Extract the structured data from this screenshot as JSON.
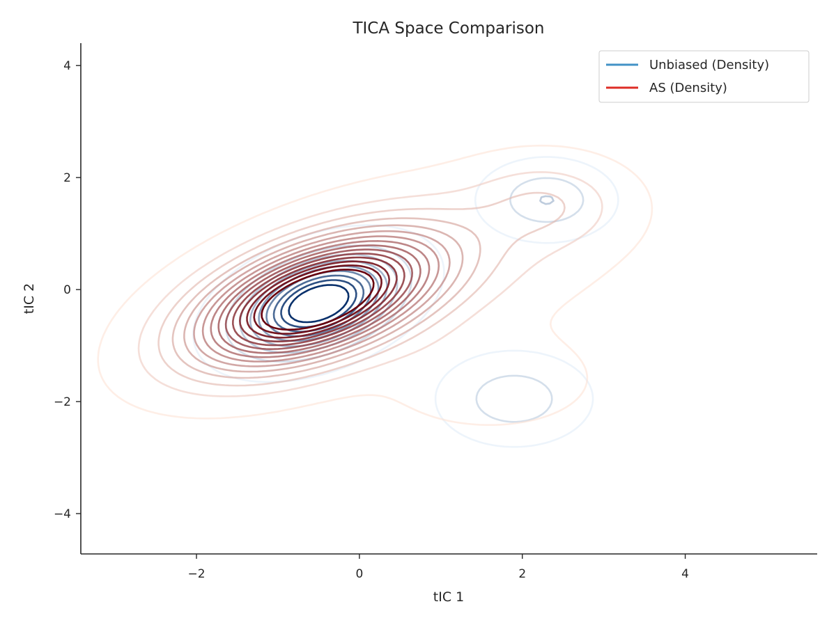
{
  "chart_data": {
    "type": "contour",
    "title": "TICA Space Comparison",
    "xlabel": "tIC 1",
    "ylabel": "tIC 2",
    "xlim": [
      -3.42,
      5.62
    ],
    "ylim": [
      -4.72,
      4.4
    ],
    "xticks": [
      -2,
      0,
      2,
      4
    ],
    "xtick_labels": [
      "−2",
      "0",
      "2",
      "4"
    ],
    "yticks": [
      -4,
      -2,
      0,
      2,
      4
    ],
    "ytick_labels": [
      "−4",
      "−2",
      "0",
      "2",
      "4"
    ],
    "grid": false,
    "legend_position": "top-right",
    "series": [
      {
        "name": "Unbiased (Density)",
        "legend_color": "#4292c6",
        "light_color": "#deebf7",
        "dark_color": "#08306b",
        "levels": 9,
        "components": [
          {
            "cx": -0.5,
            "cy": -0.25,
            "sx": 0.55,
            "sy": 0.5,
            "rho": 0.4,
            "w": 1.0
          },
          {
            "cx": 2.3,
            "cy": 1.6,
            "sx": 0.4,
            "sy": 0.35,
            "rho": 0.0,
            "w": 0.22
          },
          {
            "cx": 1.9,
            "cy": -1.95,
            "sx": 0.45,
            "sy": 0.4,
            "rho": 0.0,
            "w": 0.2
          }
        ]
      },
      {
        "name": "AS (Density)",
        "legend_color": "#de2d26",
        "light_color": "#fee0d2",
        "dark_color": "#67000d",
        "levels": 15,
        "components": [
          {
            "cx": -0.55,
            "cy": -0.2,
            "sx": 0.95,
            "sy": 0.75,
            "rho": 0.5,
            "w": 1.0
          },
          {
            "cx": 2.3,
            "cy": 1.55,
            "sx": 0.6,
            "sy": 0.5,
            "rho": 0.0,
            "w": 0.1
          },
          {
            "cx": 1.6,
            "cy": -1.6,
            "sx": 0.8,
            "sy": 0.55,
            "rho": 0.0,
            "w": 0.06
          },
          {
            "cx": 1.2,
            "cy": 0.6,
            "sx": 1.2,
            "sy": 0.9,
            "rho": 0.3,
            "w": 0.08
          }
        ]
      }
    ]
  }
}
